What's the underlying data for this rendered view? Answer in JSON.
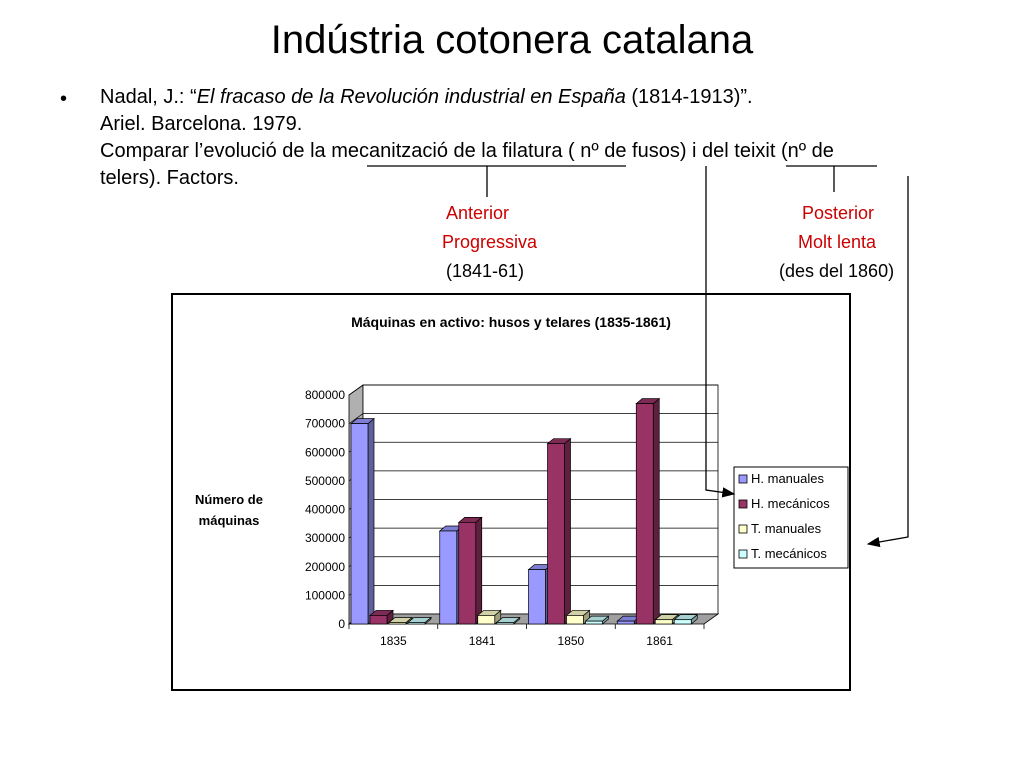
{
  "slide": {
    "title": "Indústria cotonera catalana",
    "bullet": "•",
    "ref_author": "Nadal, J.: “",
    "ref_book": "El fracaso de la Revolución industrial en España",
    "ref_years": " (1814-1913)”.",
    "ref_publisher": "Ariel. Barcelona. 1979.",
    "compare_line": "Comparar l’evolució de la mecanització  de la filatura ( nº de fusos) i del teixit (nº de",
    "compare_line2": "telers). Factors."
  },
  "annotations": {
    "left": {
      "line1": "Anterior",
      "line2": "Progressiva",
      "line3": "(1841-61)"
    },
    "right": {
      "line1": "Posterior",
      "line2": "Molt lenta",
      "line3": "(des del 1860)"
    }
  },
  "colors": {
    "h_manuales": "#9999ff",
    "h_mecanicos": "#993366",
    "t_manuales": "#ffffcc",
    "t_mecanicos": "#ccffff",
    "annotation_red": "#cc0000"
  },
  "chart_data": {
    "type": "bar",
    "title": "Máquinas en activo: husos y telares (1835-1861)",
    "ylabel": "Número de máquinas",
    "xlabel": "",
    "categories": [
      "1835",
      "1841",
      "1850",
      "1861"
    ],
    "series": [
      {
        "name": "H. manuales",
        "values": [
          700000,
          325000,
          190000,
          10000
        ]
      },
      {
        "name": "H. mecánicos",
        "values": [
          30000,
          355000,
          630000,
          770000
        ]
      },
      {
        "name": "T. manuales",
        "values": [
          0,
          30000,
          30000,
          15000
        ]
      },
      {
        "name": "T. mecánicos",
        "values": [
          0,
          5000,
          10000,
          15000
        ]
      }
    ],
    "ylim": [
      0,
      800000
    ],
    "yticks": [
      "0",
      "100000",
      "200000",
      "300000",
      "400000",
      "500000",
      "600000",
      "700000",
      "800000"
    ],
    "grid": true,
    "legend_position": "right",
    "style": "3d-column"
  }
}
